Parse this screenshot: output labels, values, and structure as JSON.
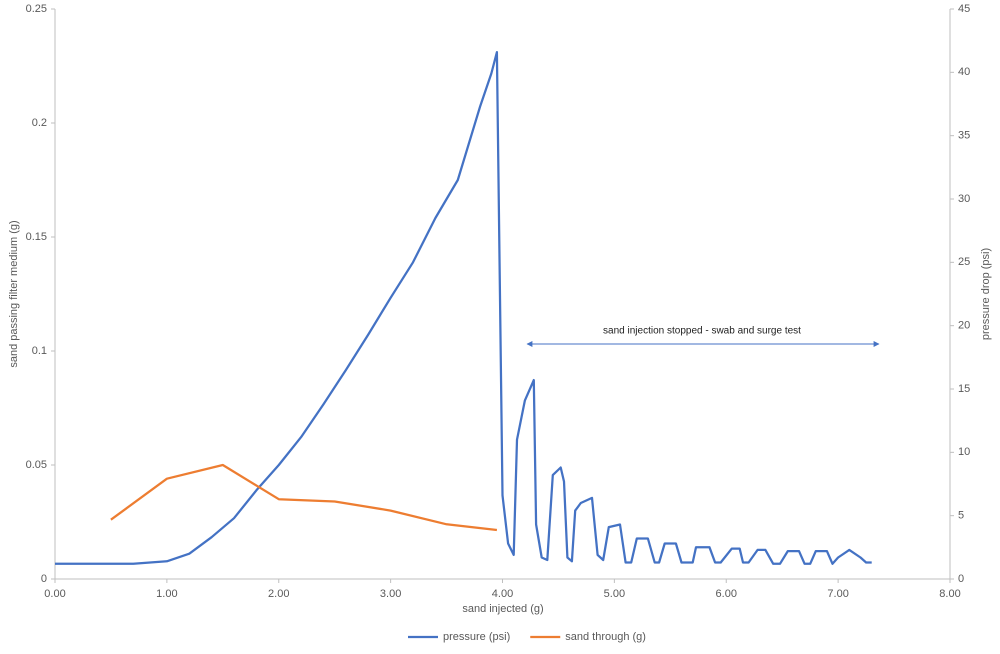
{
  "chart_data": {
    "type": "line",
    "xlabel": "sand injected (g)",
    "ylabel": "sand passing filter medium (g)",
    "y2label": "pressure drop (psi)",
    "annotation": "sand injection stopped - swab and surge test",
    "xlim": [
      0,
      8
    ],
    "xticks": [
      {
        "value": 0,
        "label": "0.00"
      },
      {
        "value": 1,
        "label": "1.00"
      },
      {
        "value": 2,
        "label": "2.00"
      },
      {
        "value": 3,
        "label": "3.00"
      },
      {
        "value": 4,
        "label": "4.00"
      },
      {
        "value": 5,
        "label": "5.00"
      },
      {
        "value": 6,
        "label": "6.00"
      },
      {
        "value": 7,
        "label": "7.00"
      },
      {
        "value": 8,
        "label": "8.00"
      }
    ],
    "ylim": [
      0,
      0.25
    ],
    "yticks": [
      0,
      0.05,
      0.1,
      0.15,
      0.2,
      0.25
    ],
    "y2lim": [
      0,
      45
    ],
    "y2ticks": [
      0,
      5,
      10,
      15,
      20,
      25,
      30,
      35,
      40,
      45
    ],
    "legend": "bottom",
    "series": [
      {
        "name": "pressure (psi)",
        "color": "#4472c4",
        "axis": "y2",
        "x": [
          0,
          0.3,
          0.7,
          1.0,
          1.2,
          1.4,
          1.6,
          1.8,
          2.0,
          2.2,
          2.4,
          2.6,
          2.8,
          3.0,
          3.2,
          3.4,
          3.6,
          3.8,
          3.9,
          3.95,
          4.0,
          4.05,
          4.1,
          4.13,
          4.2,
          4.28,
          4.3,
          4.35,
          4.4,
          4.45,
          4.52,
          4.55,
          4.58,
          4.62,
          4.65,
          4.7,
          4.8,
          4.85,
          4.9,
          4.95,
          5.05,
          5.1,
          5.15,
          5.2,
          5.3,
          5.36,
          5.4,
          5.45,
          5.55,
          5.6,
          5.7,
          5.73,
          5.85,
          5.9,
          5.95,
          6.05,
          6.12,
          6.15,
          6.2,
          6.28,
          6.35,
          6.42,
          6.48,
          6.55,
          6.65,
          6.7,
          6.75,
          6.8,
          6.9,
          6.95,
          7.0,
          7.1,
          7.2,
          7.25,
          7.3
        ],
        "values": [
          1.2,
          1.2,
          1.2,
          1.4,
          2.0,
          3.3,
          4.8,
          7.0,
          9.0,
          11.2,
          13.8,
          16.5,
          19.3,
          22.2,
          25.0,
          28.5,
          31.5,
          37.3,
          39.9,
          41.6,
          6.6,
          2.8,
          1.9,
          11.0,
          14.1,
          15.7,
          4.3,
          1.7,
          1.5,
          8.2,
          8.8,
          7.7,
          1.7,
          1.4,
          5.4,
          6.0,
          6.4,
          1.9,
          1.5,
          4.1,
          4.3,
          1.3,
          1.3,
          3.2,
          3.2,
          1.3,
          1.3,
          2.8,
          2.8,
          1.3,
          1.3,
          2.5,
          2.5,
          1.3,
          1.3,
          2.4,
          2.4,
          1.3,
          1.3,
          2.3,
          2.3,
          1.2,
          1.2,
          2.2,
          2.2,
          1.2,
          1.2,
          2.2,
          2.2,
          1.2,
          1.7,
          2.3,
          1.7,
          1.3,
          1.3
        ]
      },
      {
        "name": "sand through (g)",
        "color": "#ed7d31",
        "axis": "y",
        "x": [
          0.5,
          1.0,
          1.5,
          2.0,
          2.5,
          3.0,
          3.5,
          3.95
        ],
        "values": [
          0.026,
          0.044,
          0.05,
          0.035,
          0.034,
          0.03,
          0.024,
          0.0215
        ]
      }
    ]
  }
}
